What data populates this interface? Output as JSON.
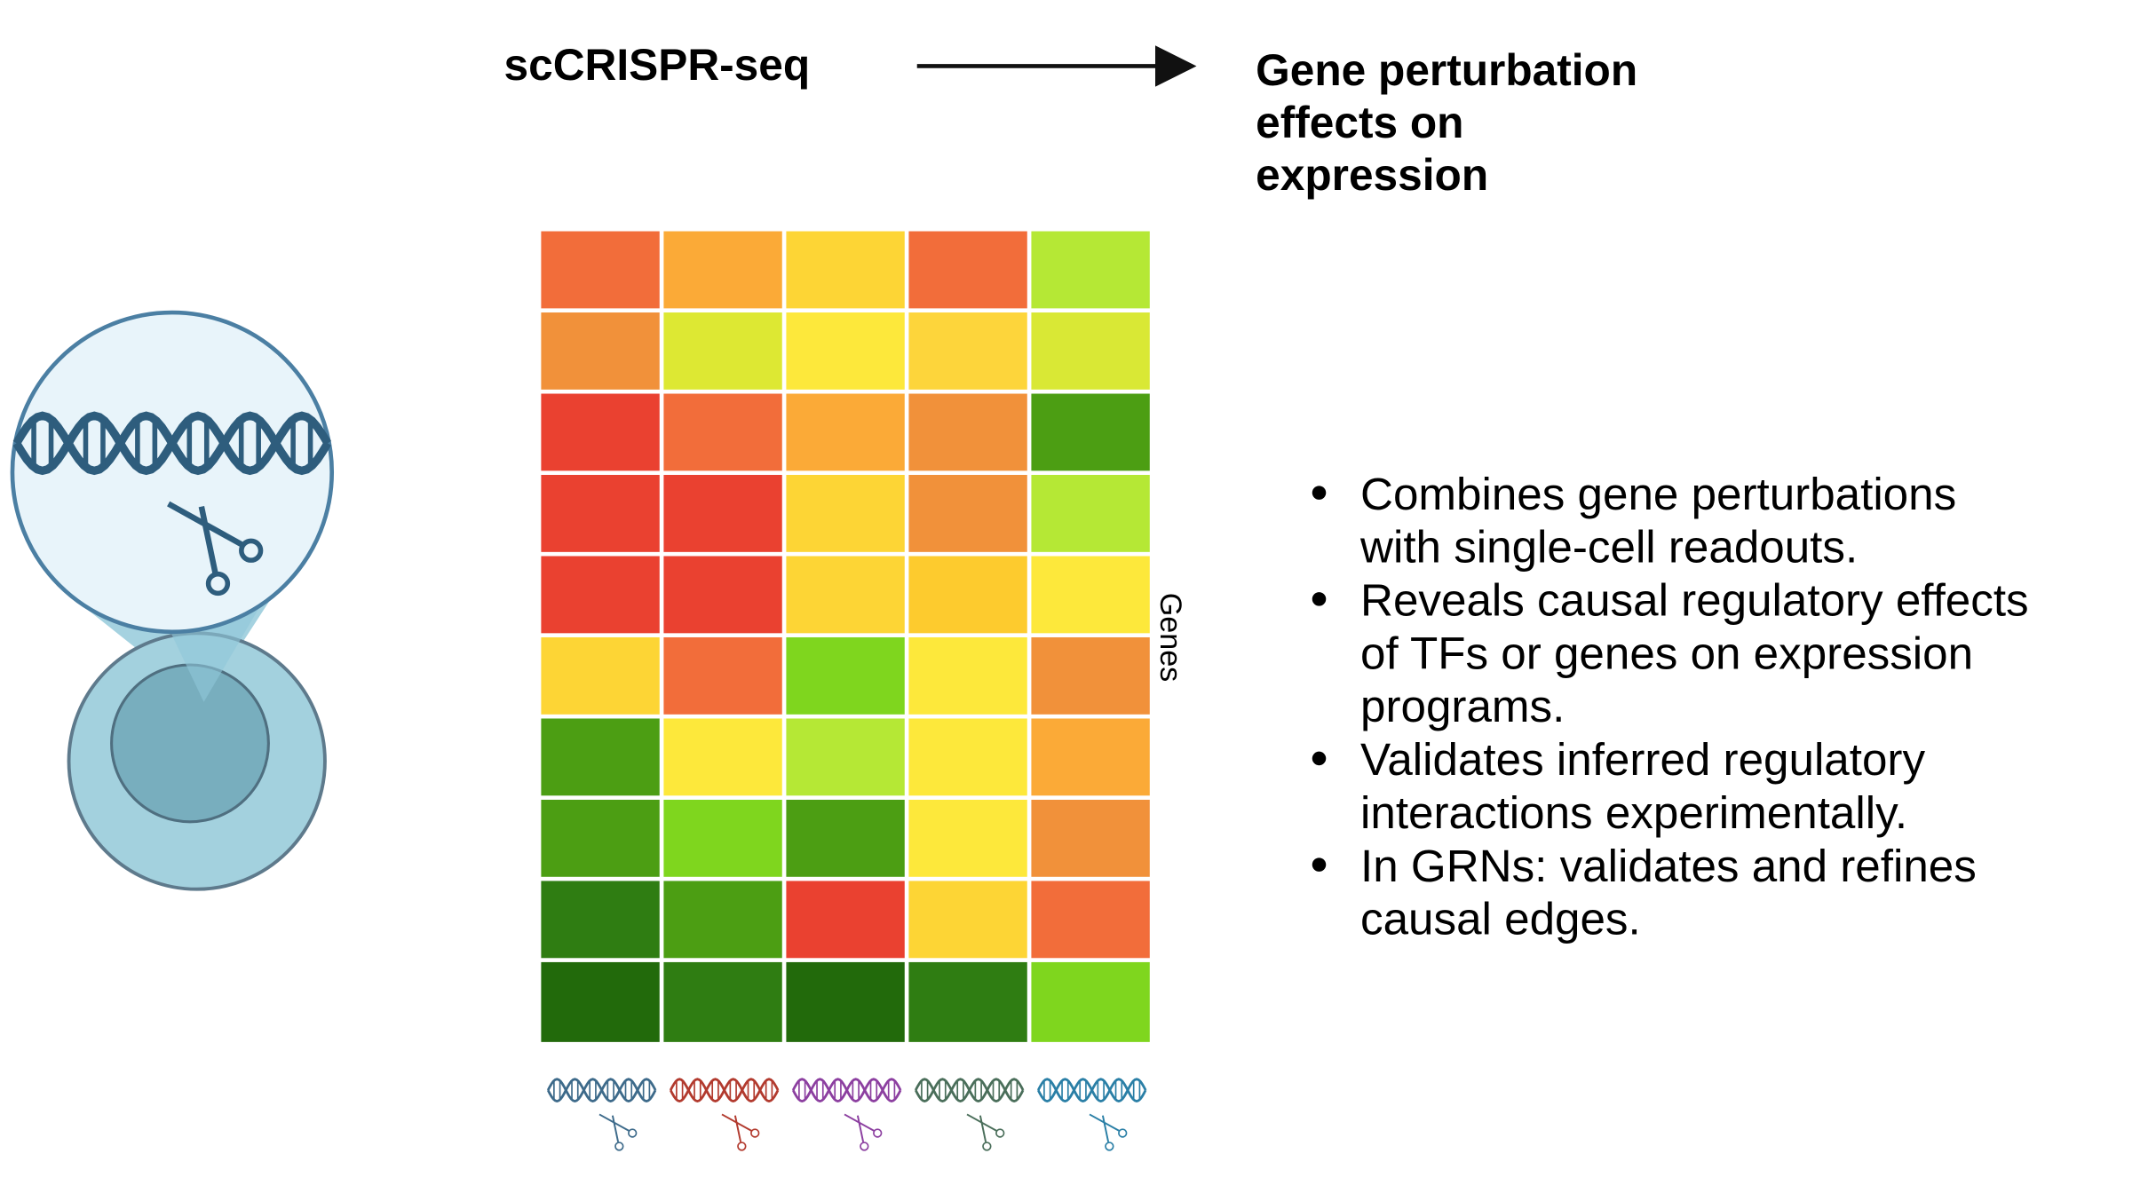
{
  "header": {
    "method": "scCRISPR-seq",
    "result_lines": [
      "Gene perturbation",
      "effects on",
      "expression"
    ]
  },
  "heatmap": {
    "axis_label": "Genes",
    "rows": [
      [
        "#f26d3a",
        "#fbaa37",
        "#fdd535",
        "#f26d3a",
        "#b5e835"
      ],
      [
        "#f1913a",
        "#dde833",
        "#fde83b",
        "#fdd53b",
        "#d9e835"
      ],
      [
        "#ea4130",
        "#f26d3a",
        "#fbaa37",
        "#f1913a",
        "#4c9e13"
      ],
      [
        "#ea4130",
        "#ea4130",
        "#fdd535",
        "#f1913a",
        "#b5e835"
      ],
      [
        "#ea4130",
        "#ea4130",
        "#fdd535",
        "#fdcb2e",
        "#fde83b"
      ],
      [
        "#fdd535",
        "#f26d3a",
        "#7fd61e",
        "#fde83b",
        "#f1913a"
      ],
      [
        "#4c9e13",
        "#fde83b",
        "#b5e835",
        "#fde83b",
        "#fbaa37"
      ],
      [
        "#4c9e13",
        "#7fd61e",
        "#4c9e13",
        "#fde83b",
        "#f1913a"
      ],
      [
        "#2f7d12",
        "#4c9e13",
        "#ea4130",
        "#fdd535",
        "#f26d3a"
      ],
      [
        "#226a0b",
        "#2f7d12",
        "#226a0b",
        "#2f7d12",
        "#7fd61e"
      ]
    ],
    "perturbation_colors": [
      "#3d6a8a",
      "#b23a2e",
      "#8c3fa0",
      "#4a6e5a",
      "#2a7fa6"
    ]
  },
  "bullets": [
    {
      "lines": [
        "Combines gene perturbations",
        "with single-cell readouts."
      ]
    },
    {
      "lines": [
        "Reveals causal regulatory effects",
        "of TFs or genes on expression",
        "programs."
      ]
    },
    {
      "lines": [
        "Validates inferred regulatory",
        "interactions experimentally."
      ]
    },
    {
      "lines": [
        "In GRNs: validates and refines",
        "causal edges."
      ]
    }
  ]
}
